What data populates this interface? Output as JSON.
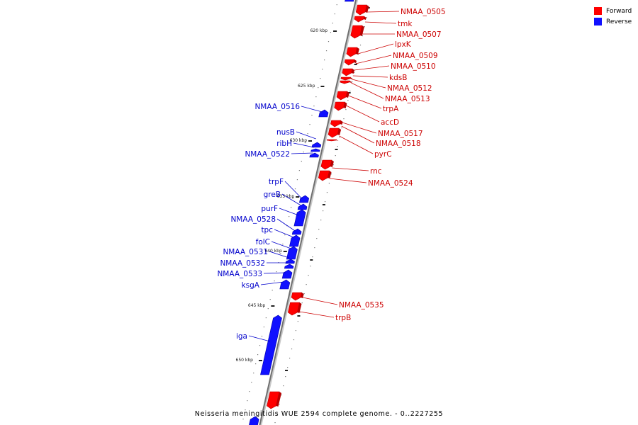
{
  "colors": {
    "forward": "#ff0000",
    "forward_dark": "#b80000",
    "reverse": "#1010ff",
    "reverse_dark": "#0000aa",
    "forward_text": "#cc0000",
    "reverse_text": "#0000cc",
    "backbone": "#707070"
  },
  "legend": [
    {
      "label": "Forward",
      "color": "#ff0000"
    },
    {
      "label": "Reverse",
      "color": "#1010ff"
    }
  ],
  "caption": "Neisseria meningitidis WUE 2594 complete genome. - 0..2227255",
  "ticks": [
    "620 kbp",
    "625 kbp",
    "630 kbp",
    "635 kbp",
    "640 kbp",
    "645 kbp",
    "650 kbp"
  ],
  "forward_genes": [
    "NMAA_0505",
    "tmk",
    "NMAA_0507",
    "lpxK",
    "NMAA_0509",
    "NMAA_0510",
    "kdsB",
    "NMAA_0512",
    "NMAA_0513",
    "trpA",
    "accD",
    "NMAA_0517",
    "NMAA_0518",
    "pyrC",
    "rnc",
    "NMAA_0524",
    "NMAA_0535",
    "trpB"
  ],
  "reverse_genes": [
    "NMAA_0516",
    "nusB",
    "ribH",
    "NMAA_0522",
    "trpF",
    "greB",
    "purF",
    "NMAA_0528",
    "tpc",
    "folC",
    "NMAA_0531",
    "NMAA_0532",
    "NMAA_0533",
    "ksgA",
    "iga"
  ]
}
